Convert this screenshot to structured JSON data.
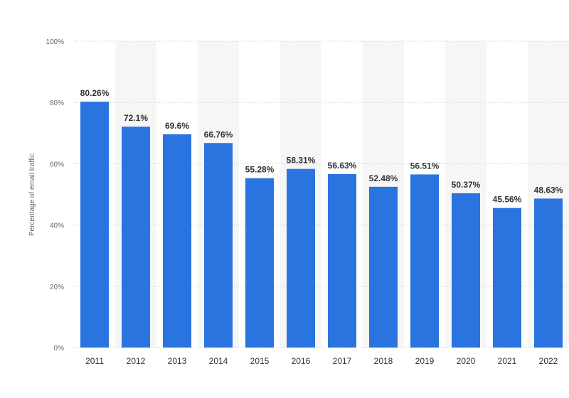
{
  "chart_data": {
    "type": "bar",
    "ylabel": "Percentage of email traffic",
    "categories": [
      "2011",
      "2012",
      "2013",
      "2014",
      "2015",
      "2016",
      "2017",
      "2018",
      "2019",
      "2020",
      "2021",
      "2022"
    ],
    "values": [
      80.26,
      72.1,
      69.6,
      66.76,
      55.28,
      58.31,
      56.63,
      52.48,
      56.51,
      50.37,
      45.56,
      48.63
    ],
    "data_labels": [
      "80.26%",
      "72.1%",
      "69.6%",
      "66.76%",
      "55.28%",
      "58.31%",
      "56.63%",
      "52.48%",
      "56.51%",
      "50.37%",
      "45.56%",
      "48.63%"
    ],
    "ylim": [
      0,
      100
    ],
    "yticks": [
      0,
      20,
      40,
      60,
      80,
      100
    ],
    "ytick_labels": [
      "0%",
      "20%",
      "40%",
      "60%",
      "80%",
      "100%"
    ],
    "grid": true,
    "bar_color": "#2a74df",
    "band_color": "#f6f6f6"
  }
}
